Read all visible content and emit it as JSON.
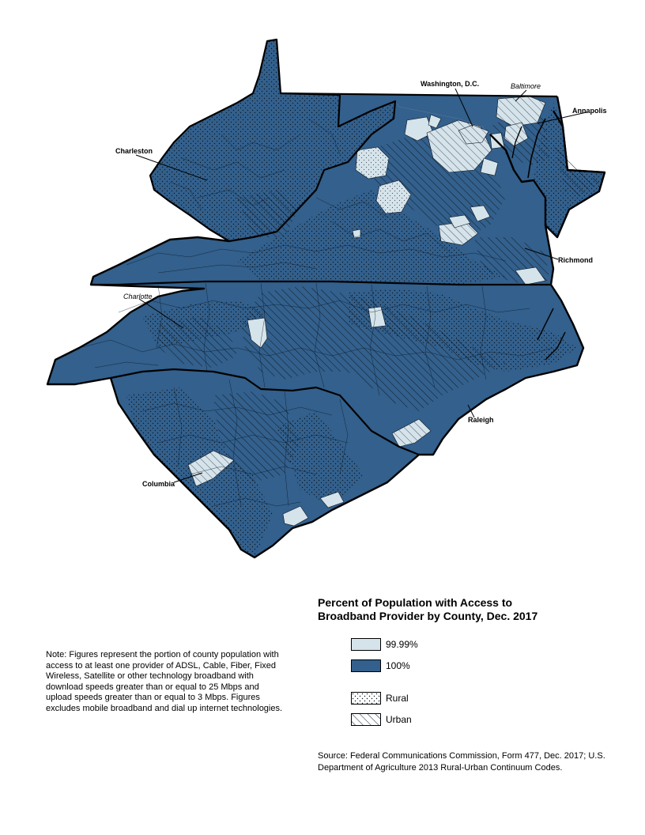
{
  "map": {
    "city_labels": [
      {
        "id": "washington",
        "text": "Washington, D.C.",
        "italic": false
      },
      {
        "id": "baltimore",
        "text": "Baltimore",
        "italic": true
      },
      {
        "id": "annapolis",
        "text": "Annapolis",
        "italic": false
      },
      {
        "id": "charleston",
        "text": "Charleston",
        "italic": false
      },
      {
        "id": "richmond",
        "text": "Richmond",
        "italic": false
      },
      {
        "id": "charlotte",
        "text": "Charlotte",
        "italic": true
      },
      {
        "id": "raleigh",
        "text": "Raleigh",
        "italic": false
      },
      {
        "id": "columbia",
        "text": "Columbia",
        "italic": false
      }
    ],
    "colors": {
      "full_access": "#33608c",
      "partial_access": "#d5e3ea",
      "border": "#000000",
      "land_outline": "#111111"
    }
  },
  "legend": {
    "title_line1": "Percent of Population with Access to",
    "title_line2": "Broadband Provider by County, Dec. 2017",
    "items": [
      {
        "label": "99.99%",
        "color": "#d5e3ea"
      },
      {
        "label": "100%",
        "color": "#33608c"
      },
      {
        "label": "Rural",
        "pattern": "dots"
      },
      {
        "label": "Urban",
        "pattern": "hatch"
      }
    ]
  },
  "note": "Note: Figures represent the portion of county population with access to at least one provider of ADSL, Cable, Fiber, Fixed Wireless, Satellite or other technology broadband with download speeds greater than or equal to 25 Mbps and upload speeds greater than or equal to 3 Mbps. Figures excludes mobile broadband and dial up internet technologies.",
  "source": "Source: Federal Communications Commission, Form 477, Dec. 2017; U.S. Department of Agriculture 2013 Rural-Urban Continuum Codes."
}
